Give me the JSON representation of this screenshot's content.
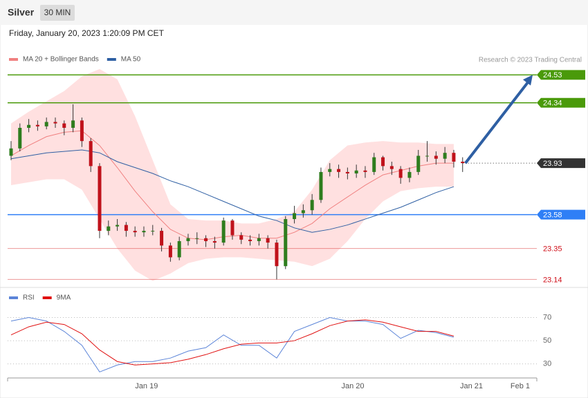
{
  "header": {
    "title": "Silver",
    "interval": "30 MIN",
    "datetime": "Friday, January 20, 2023 1:20:09 PM CET"
  },
  "chart_data": [
    {
      "type": "candlestick",
      "credit": "Research © 2023 Trading Central",
      "up_color": "#2e7d1e",
      "down_color": "#c0121b",
      "open": [
        23.98,
        24.03,
        24.17,
        24.19,
        24.18,
        24.21,
        24.2,
        24.17,
        24.22,
        24.08,
        23.91,
        23.47,
        23.5,
        23.51,
        23.47,
        23.46,
        23.47,
        23.47,
        23.37,
        23.29,
        23.4,
        23.42,
        23.42,
        23.4,
        23.39,
        23.54,
        23.44,
        23.41,
        23.4,
        23.42,
        23.39,
        23.23,
        23.55,
        23.59,
        23.61,
        23.68,
        23.87,
        23.89,
        23.87,
        23.86,
        23.88,
        23.87,
        23.97,
        23.91,
        23.89,
        23.83,
        23.87,
        23.98,
        23.98,
        23.96,
        24.0,
        23.94
      ],
      "high": [
        24.08,
        24.2,
        24.23,
        24.22,
        24.24,
        24.24,
        24.22,
        24.33,
        24.24,
        24.1,
        23.93,
        23.54,
        23.55,
        23.53,
        23.5,
        23.5,
        23.51,
        23.49,
        23.39,
        23.43,
        23.45,
        23.46,
        23.44,
        23.43,
        23.56,
        23.55,
        23.46,
        23.44,
        23.45,
        23.44,
        23.41,
        23.57,
        23.64,
        23.65,
        23.72,
        23.9,
        23.93,
        23.92,
        23.9,
        23.92,
        23.91,
        24.0,
        23.98,
        23.94,
        23.91,
        23.9,
        24.02,
        24.08,
        24.01,
        24.04,
        24.02,
        23.97
      ],
      "low": [
        23.95,
        24.01,
        24.14,
        24.15,
        24.16,
        24.17,
        24.12,
        24.14,
        24.04,
        23.87,
        23.42,
        23.44,
        23.47,
        23.43,
        23.43,
        23.43,
        23.44,
        23.33,
        23.26,
        23.27,
        23.37,
        23.38,
        23.36,
        23.35,
        23.37,
        23.41,
        23.38,
        23.37,
        23.37,
        23.35,
        23.14,
        23.21,
        23.52,
        23.56,
        23.58,
        23.66,
        23.84,
        23.83,
        23.82,
        23.83,
        23.83,
        23.85,
        23.88,
        23.85,
        23.79,
        23.8,
        23.85,
        23.94,
        23.92,
        23.93,
        23.9,
        23.87
      ],
      "close": [
        24.03,
        24.17,
        24.19,
        24.18,
        24.21,
        24.2,
        24.17,
        24.22,
        24.08,
        23.91,
        23.47,
        23.5,
        23.51,
        23.47,
        23.46,
        23.47,
        23.47,
        23.37,
        23.29,
        23.4,
        23.42,
        23.42,
        23.4,
        23.39,
        23.54,
        23.44,
        23.41,
        23.4,
        23.42,
        23.39,
        23.23,
        23.55,
        23.59,
        23.61,
        23.68,
        23.87,
        23.89,
        23.87,
        23.86,
        23.88,
        23.87,
        23.97,
        23.91,
        23.89,
        23.83,
        23.87,
        23.98,
        23.98,
        23.96,
        24.0,
        23.94,
        23.93
      ],
      "line_x": [
        0,
        2,
        4,
        6,
        8,
        10,
        12,
        14,
        16,
        18,
        20,
        22,
        24,
        26,
        28,
        30,
        32,
        34,
        36,
        38,
        40,
        42,
        44,
        46,
        48,
        50
      ],
      "series": [
        {
          "name": "MA 20 + Bollinger Bands",
          "color": "#f08080",
          "values": [
            23.98,
            24.05,
            24.11,
            24.14,
            24.15,
            24.05,
            23.9,
            23.74,
            23.6,
            23.48,
            23.42,
            23.41,
            23.43,
            23.44,
            23.42,
            23.42,
            23.46,
            23.52,
            23.62,
            23.7,
            23.78,
            23.85,
            23.88,
            23.91,
            23.93,
            23.93
          ],
          "bands": {
            "fill": "#ffe0e0",
            "upper": [
              24.2,
              24.28,
              24.35,
              24.42,
              24.52,
              24.57,
              24.5,
              24.25,
              23.95,
              23.65,
              23.55,
              23.54,
              23.54,
              23.52,
              23.52,
              23.55,
              23.6,
              23.75,
              23.95,
              24.05,
              24.07,
              24.08,
              24.07,
              24.07,
              24.06,
              24.06
            ],
            "lower": [
              23.78,
              23.8,
              23.82,
              23.82,
              23.75,
              23.55,
              23.35,
              23.2,
              23.13,
              23.18,
              23.25,
              23.28,
              23.29,
              23.29,
              23.28,
              23.27,
              23.26,
              23.23,
              23.28,
              23.4,
              23.55,
              23.67,
              23.74,
              23.76,
              23.77,
              23.77
            ]
          }
        },
        {
          "name": "MA 50",
          "color": "#2e5fa3",
          "values": [
            23.96,
            23.98,
            24.0,
            24.01,
            24.02,
            24.0,
            23.94,
            23.9,
            23.86,
            23.81,
            23.77,
            23.72,
            23.67,
            23.62,
            23.57,
            23.54,
            23.49,
            23.46,
            23.48,
            23.51,
            23.55,
            23.59,
            23.63,
            23.68,
            23.73,
            23.77
          ]
        }
      ],
      "levels": [
        {
          "value": 24.53,
          "color": "#4a9a0a",
          "tag": true
        },
        {
          "value": 24.34,
          "color": "#4a9a0a",
          "tag": true
        },
        {
          "value": 23.93,
          "color": "#333333",
          "tag": true,
          "dotted": true
        },
        {
          "value": 23.58,
          "color": "#2f7ff6",
          "tag": true
        },
        {
          "value": 23.35,
          "color": "#e05050",
          "tag": false
        },
        {
          "value": 23.14,
          "color": "#e05050",
          "tag": false
        }
      ],
      "arrow_color": "#2e5fa3",
      "xlim": [
        -0.39,
        59.38
      ],
      "ylim": [
        23.09,
        24.71
      ]
    },
    {
      "type": "line",
      "x": [
        0,
        2,
        4,
        6,
        8,
        10,
        12,
        14,
        16,
        18,
        20,
        22,
        24,
        26,
        28,
        30,
        32,
        34,
        36,
        38,
        40,
        42,
        44,
        46,
        48,
        50
      ],
      "series": [
        {
          "name": "RSI",
          "color": "#5b84d8",
          "values": [
            67,
            70,
            67,
            58,
            46,
            23,
            29,
            32,
            32,
            35,
            41,
            44,
            55,
            46,
            46,
            35,
            58,
            64,
            70,
            67,
            67,
            64,
            52,
            59,
            57,
            53
          ]
        },
        {
          "name": "9MA",
          "color": "#e01010",
          "values": [
            55,
            62,
            66,
            64,
            56,
            42,
            32,
            29,
            30,
            31,
            34,
            38,
            43,
            47,
            48,
            48,
            50,
            56,
            63,
            67,
            68,
            66,
            62,
            58,
            58,
            54
          ]
        }
      ],
      "xlim": [
        -0.39,
        59.38
      ],
      "xticks": [
        {
          "value": 15.3,
          "label": "Jan 19"
        },
        {
          "value": 38.6,
          "label": "Jan 20"
        },
        {
          "value": 52.0,
          "label": "Jan 21"
        },
        {
          "value": 57.5,
          "label": "Feb 1"
        }
      ],
      "ylim": [
        19,
        96
      ],
      "yticks": [
        30,
        50,
        70
      ],
      "grid": true
    }
  ]
}
